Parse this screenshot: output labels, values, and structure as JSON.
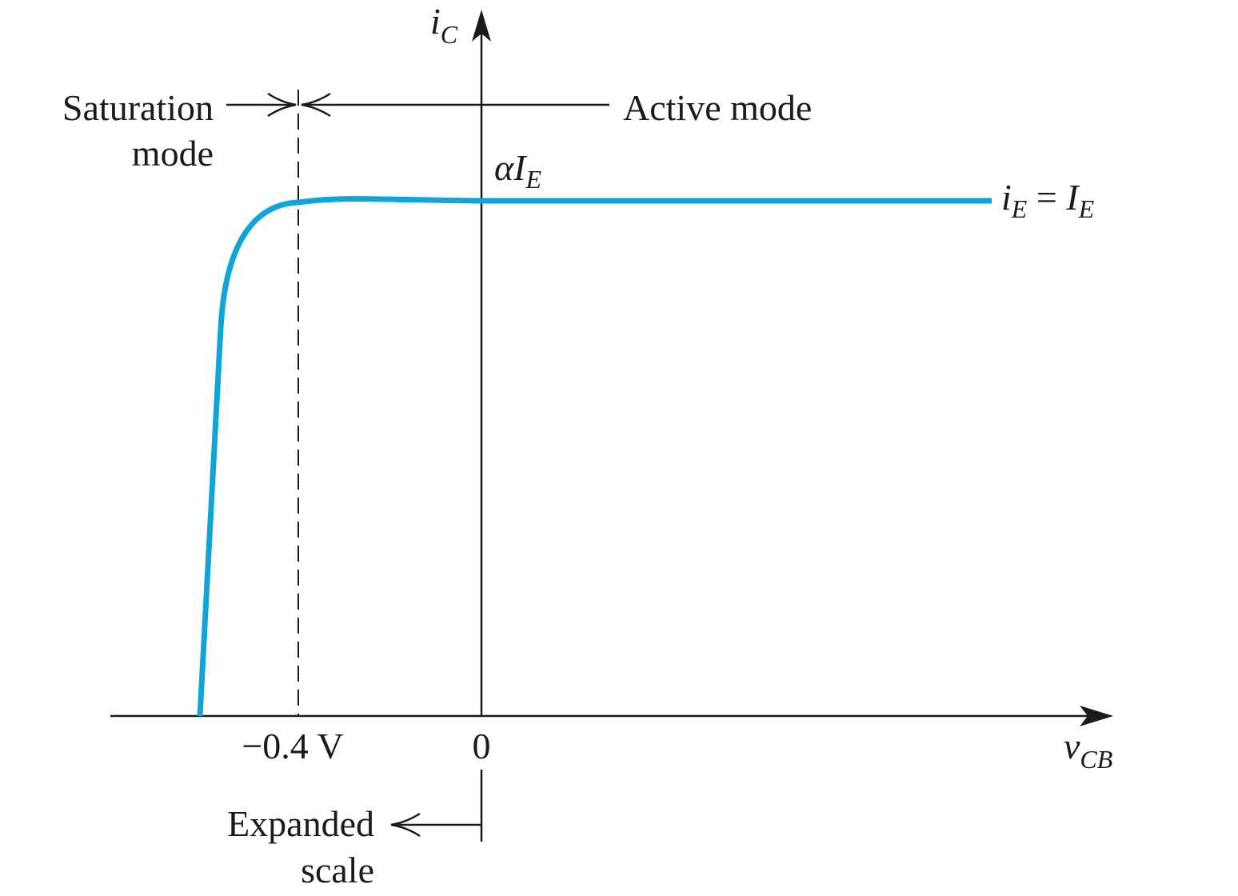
{
  "diagram": {
    "y_axis": {
      "var": "i",
      "sub": "C"
    },
    "x_axis": {
      "var": "v",
      "sub": "CB"
    },
    "ticks": {
      "neg": "−0.4 V",
      "zero": "0"
    },
    "modes": {
      "saturation_line1": "Saturation",
      "saturation_line2": "mode",
      "active": "Active mode"
    },
    "level_label": {
      "prefix": "αI",
      "sub": "E"
    },
    "curve_label": {
      "lhs": "i",
      "lhs_sub": "E",
      "eq": " = ",
      "rhs": "I",
      "rhs_sub": "E"
    },
    "expanded_line1": "Expanded",
    "expanded_line2": "scale",
    "colors": {
      "curve": "#0ea5d8",
      "ink": "#1a1a1a"
    }
  }
}
